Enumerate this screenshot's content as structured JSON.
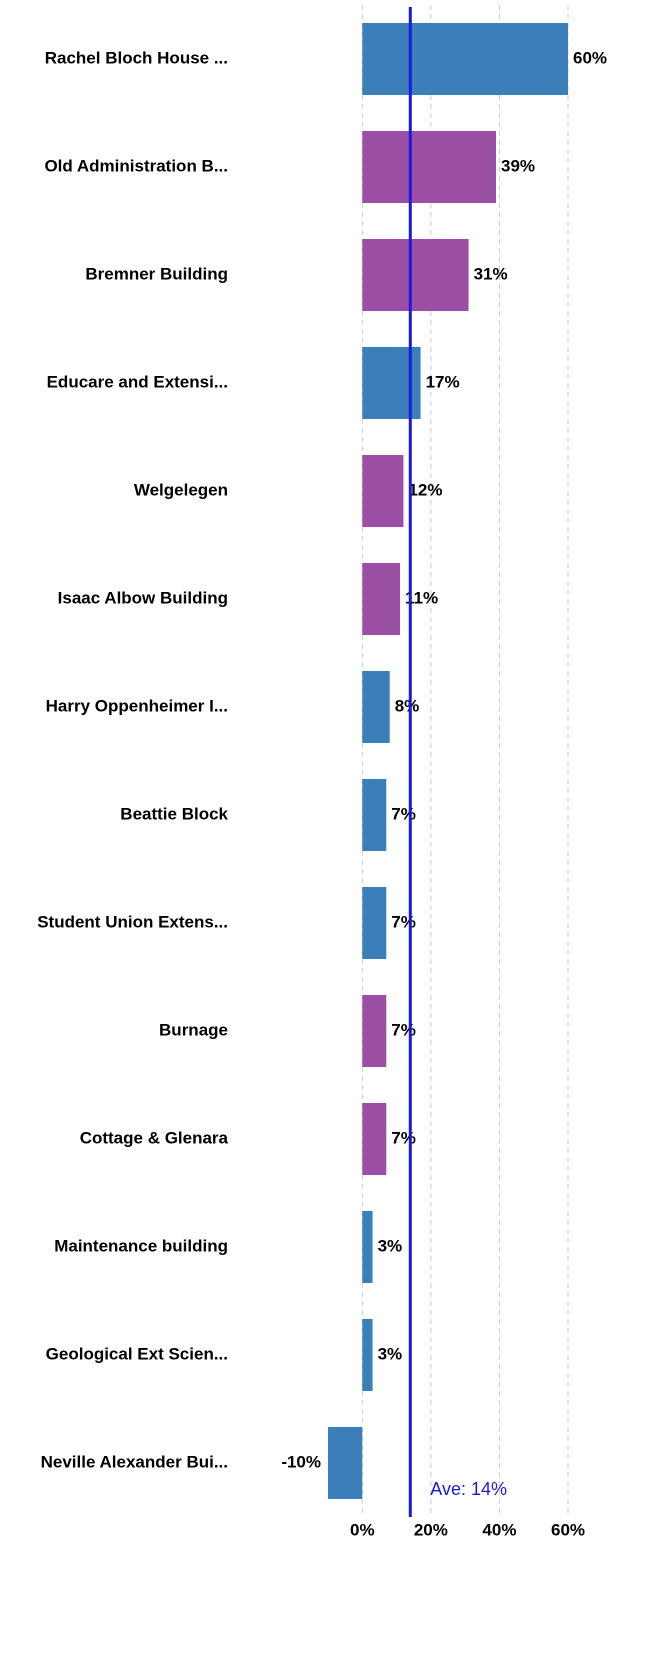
{
  "chart_data": {
    "type": "hbar",
    "categories": [
      "Rachel Bloch House ...",
      "Old Administration B...",
      "Bremner Building",
      "Educare and Extensi...",
      "Welgelegen",
      "Isaac Albow Building",
      "Harry Oppenheimer I...",
      "Beattie Block",
      "Student Union Extens...",
      "Burnage",
      "Cottage & Glenara",
      "Maintenance building",
      "Geological Ext Scien...",
      "Neville Alexander Bui..."
    ],
    "values": [
      60,
      39,
      31,
      17,
      12,
      11,
      8,
      7,
      7,
      7,
      7,
      3,
      3,
      -10
    ],
    "value_labels": [
      "60%",
      "39%",
      "31%",
      "17%",
      "12%",
      "11%",
      "8%",
      "7%",
      "7%",
      "7%",
      "7%",
      "3%",
      "3%",
      "-10%"
    ],
    "colors": [
      "#3a7fba",
      "#9b4fa5",
      "#9b4fa5",
      "#3a7fba",
      "#9b4fa5",
      "#9b4fa5",
      "#3a7fba",
      "#3a7fba",
      "#3a7fba",
      "#9b4fa5",
      "#9b4fa5",
      "#3a7fba",
      "#3a7fba",
      "#3a7fba"
    ],
    "xlim": [
      -10,
      60
    ],
    "xticks": [
      {
        "value": 0,
        "label": "0%"
      },
      {
        "value": 20,
        "label": "20%"
      },
      {
        "value": 40,
        "label": "40%"
      },
      {
        "value": 60,
        "label": "60%"
      }
    ],
    "grid": true,
    "average": 14,
    "average_label": "Ave: 14%",
    "average_color": "#1a1adf"
  }
}
